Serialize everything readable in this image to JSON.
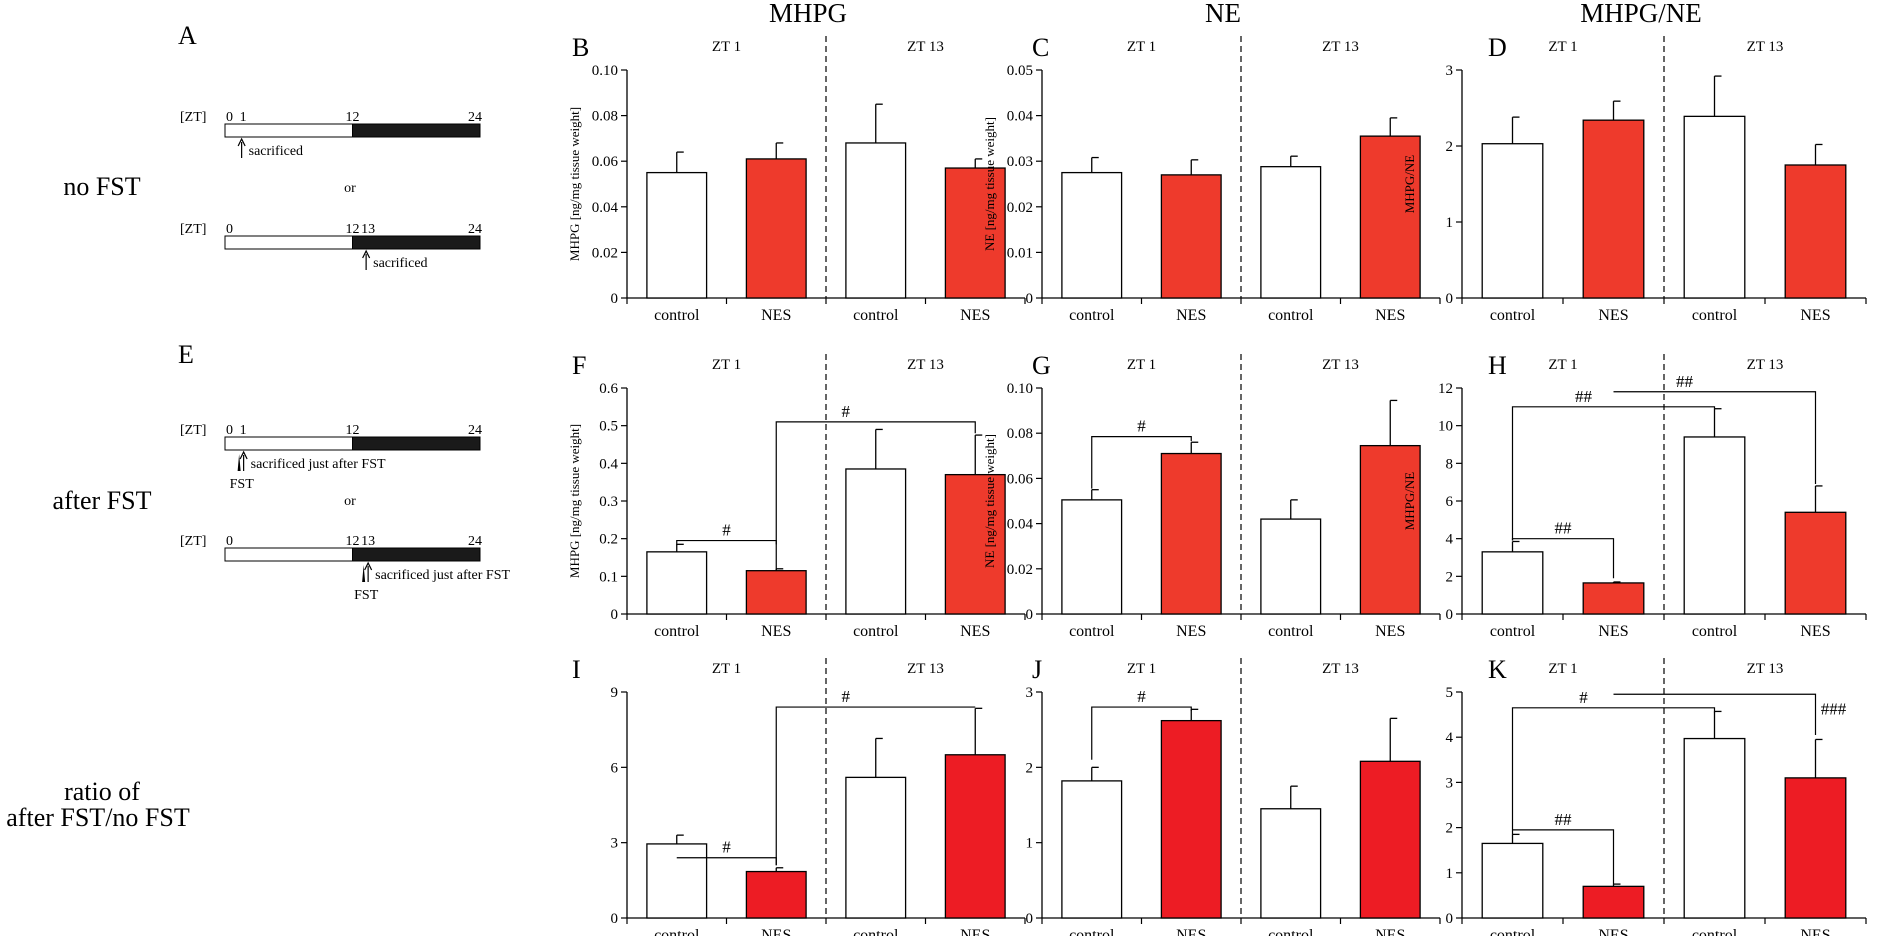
{
  "row_labels": [
    "no FST",
    "after FST",
    "ratio of",
    "after FST/no FST"
  ],
  "column_titles": [
    "MHPG",
    "NE",
    "MHPG/NE"
  ],
  "timelines": {
    "A": {
      "letter": "A",
      "items": [
        {
          "zt": "[ZT]",
          "t0": "0",
          "t1": "1",
          "t12": "12",
          "t24": "24",
          "sacrificed": "sacrificed",
          "or": "or"
        },
        {
          "zt": "[ZT]",
          "t0": "0",
          "t12": "12",
          "t13": "13",
          "t24": "24",
          "sacrificed": "sacrificed"
        }
      ]
    },
    "E": {
      "letter": "E",
      "items": [
        {
          "zt": "[ZT]",
          "t0": "0",
          "t1": "1",
          "t12": "12",
          "t24": "24",
          "sacrificed": "sacrificed just after FST",
          "fst": "FST",
          "or": "or"
        },
        {
          "zt": "[ZT]",
          "t0": "0",
          "t12": "12",
          "t13": "13",
          "t24": "24",
          "sacrificed": "sacrificed just after FST",
          "fst": "FST"
        }
      ]
    }
  },
  "chart_data": [
    {
      "panel": "B",
      "type": "bar",
      "ylabel": "MHPG [ng/mg tissue weight]",
      "ylim": [
        0,
        0.1
      ],
      "yticks": [
        "0",
        "0.02",
        "0.04",
        "0.06",
        "0.08",
        "0.10"
      ],
      "groups": [
        "ZT 1",
        "ZT 13"
      ],
      "categories": [
        "control",
        "NES",
        "control",
        "NES"
      ],
      "values": [
        0.055,
        0.061,
        0.068,
        0.057
      ],
      "errors": [
        0.009,
        0.007,
        0.017,
        0.004
      ],
      "colors": [
        "#ffffff",
        "#ee3a2c",
        "#ffffff",
        "#ee3a2c"
      ],
      "annotations": []
    },
    {
      "panel": "C",
      "type": "bar",
      "ylabel": "NE [ng/mg tissue weight]",
      "ylim": [
        0,
        0.05
      ],
      "yticks": [
        "0",
        "0.01",
        "0.02",
        "0.03",
        "0.04",
        "0.05"
      ],
      "groups": [
        "ZT 1",
        "ZT 13"
      ],
      "categories": [
        "control",
        "NES",
        "control",
        "NES"
      ],
      "values": [
        0.0275,
        0.027,
        0.0288,
        0.0355
      ],
      "errors": [
        0.0033,
        0.0033,
        0.0023,
        0.004
      ],
      "colors": [
        "#ffffff",
        "#ee3a2c",
        "#ffffff",
        "#ee3a2c"
      ],
      "annotations": []
    },
    {
      "panel": "D",
      "type": "bar",
      "ylabel": "MHPG/NE",
      "ylim": [
        0,
        3
      ],
      "yticks": [
        "0",
        "1",
        "2",
        "3"
      ],
      "groups": [
        "ZT 1",
        "ZT 13"
      ],
      "categories": [
        "control",
        "NES",
        "control",
        "NES"
      ],
      "values": [
        2.03,
        2.34,
        2.39,
        1.75
      ],
      "errors": [
        0.35,
        0.25,
        0.53,
        0.27
      ],
      "colors": [
        "#ffffff",
        "#ee3a2c",
        "#ffffff",
        "#ee3a2c"
      ],
      "annotations": []
    },
    {
      "panel": "F",
      "type": "bar",
      "ylabel": "MHPG [ng/mg tissue weight]",
      "ylim": [
        0,
        0.6
      ],
      "yticks": [
        "0",
        "0.1",
        "0.2",
        "0.3",
        "0.4",
        "0.5",
        "0.6"
      ],
      "groups": [
        "ZT 1",
        "ZT 13"
      ],
      "categories": [
        "control",
        "NES",
        "control",
        "NES"
      ],
      "values": [
        0.165,
        0.115,
        0.385,
        0.37
      ],
      "errors": [
        0.02,
        0.005,
        0.105,
        0.105
      ],
      "colors": [
        "#ffffff",
        "#ee3a2c",
        "#ffffff",
        "#ee3a2c"
      ],
      "annotations": [
        {
          "label": "#",
          "from": 0,
          "to": 1,
          "y": 0.195,
          "drop_from": 0.012,
          "drop_to": 0.01
        },
        {
          "label": "#",
          "from": 1,
          "to": 3,
          "y": 0.51,
          "drop_from": 0.395,
          "drop_to": 0.03
        }
      ]
    },
    {
      "panel": "G",
      "type": "bar",
      "ylabel": "NE [ng/mg tissue weight]",
      "ylim": [
        0,
        0.1
      ],
      "yticks": [
        "0",
        "0.02",
        "0.04",
        "0.06",
        "0.08",
        "0.10"
      ],
      "groups": [
        "ZT 1",
        "ZT 13"
      ],
      "categories": [
        "control",
        "NES",
        "control",
        "NES"
      ],
      "values": [
        0.0505,
        0.071,
        0.042,
        0.0745
      ],
      "errors": [
        0.0045,
        0.005,
        0.0085,
        0.02
      ],
      "colors": [
        "#ffffff",
        "#ee3a2c",
        "#ffffff",
        "#ee3a2c"
      ],
      "annotations": [
        {
          "label": "#",
          "from": 0,
          "to": 1,
          "y": 0.0785,
          "drop_from": 0.023,
          "drop_to": 0.002
        }
      ]
    },
    {
      "panel": "H",
      "type": "bar",
      "ylabel": "MHPG/NE",
      "ylim": [
        0,
        12
      ],
      "yticks": [
        "0",
        "2",
        "4",
        "6",
        "8",
        "10",
        "12"
      ],
      "groups": [
        "ZT 1",
        "ZT 13"
      ],
      "categories": [
        "control",
        "NES",
        "control",
        "NES"
      ],
      "values": [
        3.3,
        1.65,
        9.4,
        5.4
      ],
      "errors": [
        0.55,
        0.05,
        1.5,
        1.4
      ],
      "colors": [
        "#ffffff",
        "#ee3a2c",
        "#ffffff",
        "#ee3a2c"
      ],
      "annotations": [
        {
          "label": "##",
          "from": 0,
          "to": 1,
          "y": 4.0,
          "drop_from": 0.1,
          "drop_to": 2.1
        },
        {
          "label": "##",
          "from": 0,
          "to": 2,
          "y": 11.0,
          "drop_from": 7.1,
          "drop_to": 0.1
        },
        {
          "label": "##",
          "from": 1,
          "to": 3,
          "y": 11.8,
          "drop_from": 0.0,
          "drop_to": 4.9
        }
      ]
    },
    {
      "panel": "I",
      "type": "bar",
      "ylabel": "",
      "ylim": [
        0,
        9
      ],
      "yticks": [
        "0",
        "3",
        "6",
        "9"
      ],
      "groups": [
        "ZT 1",
        "ZT 13"
      ],
      "categories": [
        "control",
        "NES",
        "control",
        "NES"
      ],
      "values": [
        2.95,
        1.85,
        5.6,
        6.5
      ],
      "errors": [
        0.35,
        0.15,
        1.55,
        1.85
      ],
      "colors": [
        "#ffffff",
        "#ed1c24",
        "#ffffff",
        "#ed1c24"
      ],
      "annotations": [
        {
          "label": "#",
          "from": 0,
          "to": 1,
          "y": 2.4,
          "drop_from": 0.0,
          "drop_to": 0.3
        },
        {
          "label": "#",
          "from": 1,
          "to": 3,
          "y": 8.4,
          "drop_from": 6.3,
          "drop_to": 0.0
        }
      ]
    },
    {
      "panel": "J",
      "type": "bar",
      "ylabel": "",
      "ylim": [
        0,
        3
      ],
      "yticks": [
        "0",
        "1",
        "2",
        "3"
      ],
      "groups": [
        "ZT 1",
        "ZT 13"
      ],
      "categories": [
        "control",
        "NES",
        "control",
        "NES"
      ],
      "values": [
        1.82,
        2.62,
        1.45,
        2.08
      ],
      "errors": [
        0.18,
        0.15,
        0.3,
        0.57
      ],
      "colors": [
        "#ffffff",
        "#ed1c24",
        "#ffffff",
        "#ed1c24"
      ],
      "annotations": [
        {
          "label": "#",
          "from": 0,
          "to": 1,
          "y": 2.8,
          "drop_from": 0.7,
          "drop_to": 0.05
        }
      ]
    },
    {
      "panel": "K",
      "type": "bar",
      "ylabel": "",
      "ylim": [
        0,
        5
      ],
      "yticks": [
        "0",
        "1",
        "2",
        "3",
        "4",
        "5"
      ],
      "groups": [
        "ZT 1",
        "ZT 13"
      ],
      "categories": [
        "control",
        "NES",
        "control",
        "NES"
      ],
      "values": [
        1.65,
        0.7,
        3.97,
        3.1
      ],
      "errors": [
        0.2,
        0.05,
        0.6,
        0.85
      ],
      "colors": [
        "#ffffff",
        "#ed1c24",
        "#ffffff",
        "#ed1c24"
      ],
      "annotations": [
        {
          "label": "##",
          "from": 0,
          "to": 1,
          "y": 1.95,
          "drop_from": 0.0,
          "drop_to": 1.2
        },
        {
          "label": "#",
          "from": 0,
          "to": 2,
          "y": 4.65,
          "drop_from": 2.8,
          "drop_to": 0.1
        },
        {
          "label": "###",
          "from": 1,
          "to": 3,
          "y": 4.95,
          "drop_from": 0.0,
          "drop_to": 0.9
        }
      ]
    }
  ]
}
